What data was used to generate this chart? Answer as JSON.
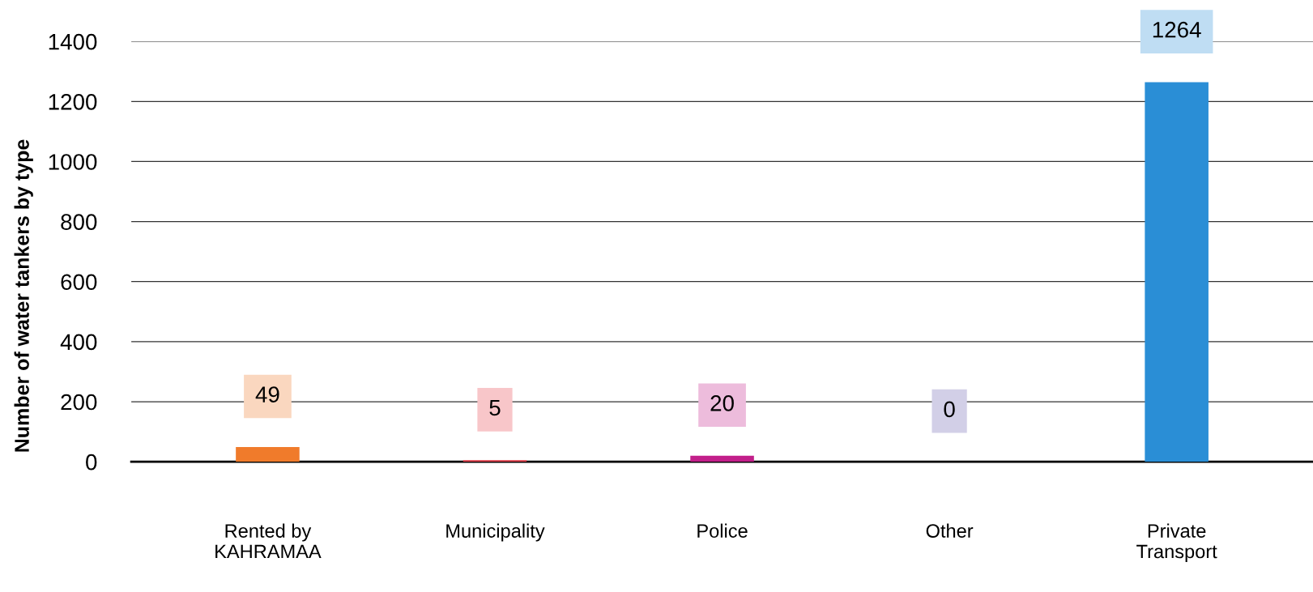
{
  "chart_data": {
    "type": "bar",
    "ylabel": "Number of water tankers by type",
    "categories": [
      "Rented by\nKAHRAMAA",
      "Municipality",
      "Police",
      "Other",
      "Private\nTransport"
    ],
    "values": [
      49,
      5,
      20,
      0,
      1264
    ],
    "colors": [
      "#f07b2b",
      "#e8404c",
      "#c21f8a",
      "#6a5eae",
      "#2a8ed6"
    ],
    "ylim": [
      0,
      1400
    ],
    "yticks": [
      0,
      200,
      400,
      600,
      800,
      1000,
      1200,
      1400
    ],
    "grid": "y",
    "data_labels": true
  }
}
